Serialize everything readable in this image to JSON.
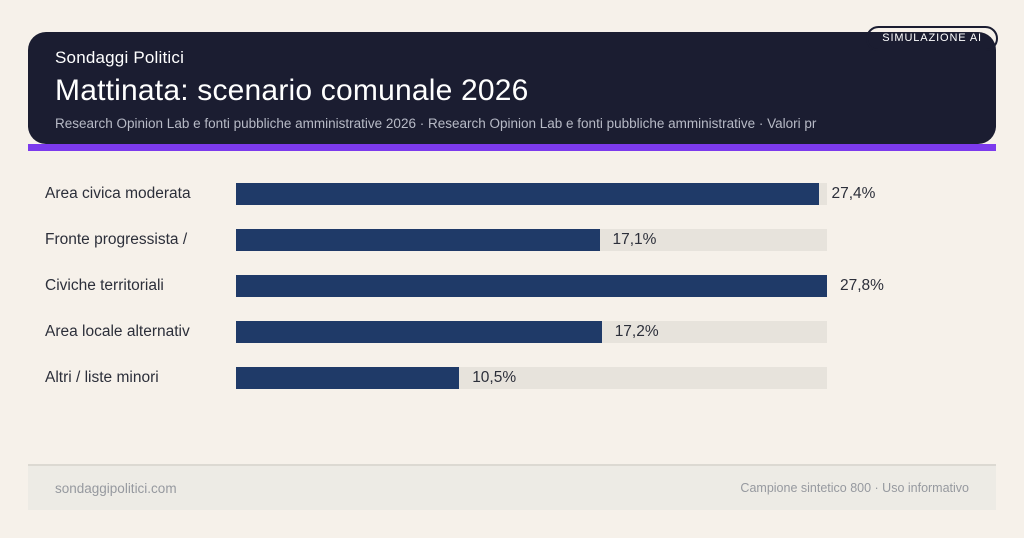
{
  "header": {
    "badge": "SIMULAZIONE AI",
    "kicker": "Sondaggi Politici",
    "title": "Mattinata: scenario comunale 2026",
    "subtitle": "Research Opinion Lab e fonti pubbliche amministrative 2026 · Research Opinion Lab e fonti pubbliche amministrative · Valori pr"
  },
  "colors": {
    "page_bg": "#f6f1ea",
    "header_bg": "#1b1d31",
    "accent": "#7c3aed",
    "bar": "#1f3a68",
    "track": "#e7e3dc",
    "label_text": "#2c2f3a",
    "muted_text": "#96999f",
    "subtitle_text": "#b7bac6",
    "footer_bg": "#edebe5"
  },
  "chart_data": {
    "type": "bar",
    "orientation": "horizontal",
    "title": "Mattinata: scenario comunale 2026",
    "categories": [
      "Area civica moderata",
      "Fronte progressista /",
      "Civiche territoriali",
      "Area locale alternativ",
      "Altri / liste minori"
    ],
    "values": [
      27.4,
      17.1,
      27.8,
      17.2,
      10.5
    ],
    "value_labels": [
      "27,4%",
      "17,1%",
      "27,8%",
      "17,2%",
      "10,5%"
    ],
    "xlim": [
      0,
      27.8
    ],
    "grid": false,
    "legend": false
  },
  "footer": {
    "left": "sondaggipolitici.com",
    "right": "Campione sintetico 800 · Uso informativo"
  }
}
